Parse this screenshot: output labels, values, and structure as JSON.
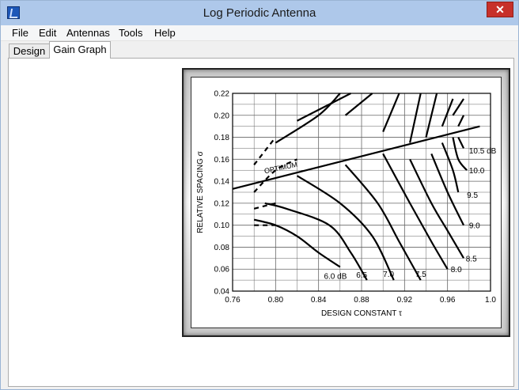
{
  "window": {
    "title": "Log Periodic Antenna",
    "close_glyph": "✕"
  },
  "menu": {
    "items": [
      "File",
      "Edit",
      "Antennas",
      "Tools",
      "Help"
    ]
  },
  "tabs": [
    {
      "label": "Design",
      "active": false
    },
    {
      "label": "Gain Graph",
      "active": true
    }
  ],
  "chart_data": {
    "type": "line",
    "xlabel": "DESIGN CONSTANT τ",
    "ylabel": "RELATIVE SPACING σ",
    "xlim": [
      0.76,
      1.0
    ],
    "ylim": [
      0.04,
      0.22
    ],
    "x_ticks": [
      "0.76",
      "0.80",
      "0.84",
      "0.88",
      "0.92",
      "0.96",
      "1.0"
    ],
    "y_ticks": [
      "0.04",
      "0.06",
      "0.08",
      "0.10",
      "0.12",
      "0.14",
      "0.16",
      "0.18",
      "0.20",
      "0.22"
    ],
    "grid": true,
    "optimum_label": "OPTIMUM",
    "optimum_line": [
      [
        0.76,
        0.133
      ],
      [
        0.99,
        0.19
      ]
    ],
    "series": [
      {
        "name": "6.0 dB",
        "points": [
          [
            0.78,
            0.105
          ],
          [
            0.8,
            0.1
          ],
          [
            0.82,
            0.09
          ],
          [
            0.84,
            0.075
          ],
          [
            0.86,
            0.062
          ]
        ]
      },
      {
        "name": "6.5",
        "points": [
          [
            0.8,
            0.175
          ],
          [
            0.84,
            0.2
          ],
          [
            0.86,
            0.22
          ]
        ]
      },
      {
        "name": "6.5",
        "points": [
          [
            0.79,
            0.12
          ],
          [
            0.81,
            0.115
          ],
          [
            0.85,
            0.1
          ],
          [
            0.87,
            0.075
          ],
          [
            0.885,
            0.05
          ]
        ]
      },
      {
        "name": "7.0",
        "points": [
          [
            0.82,
            0.195
          ],
          [
            0.87,
            0.22
          ]
        ]
      },
      {
        "name": "7.0",
        "points": [
          [
            0.82,
            0.145
          ],
          [
            0.86,
            0.12
          ],
          [
            0.89,
            0.09
          ],
          [
            0.91,
            0.05
          ]
        ]
      },
      {
        "name": "7.5",
        "points": [
          [
            0.865,
            0.2
          ],
          [
            0.89,
            0.22
          ]
        ]
      },
      {
        "name": "7.5",
        "points": [
          [
            0.865,
            0.155
          ],
          [
            0.895,
            0.12
          ],
          [
            0.915,
            0.085
          ],
          [
            0.935,
            0.05
          ]
        ]
      },
      {
        "name": "8.0",
        "points": [
          [
            0.9,
            0.185
          ],
          [
            0.915,
            0.22
          ]
        ]
      },
      {
        "name": "8.0",
        "points": [
          [
            0.9,
            0.165
          ],
          [
            0.925,
            0.12
          ],
          [
            0.945,
            0.085
          ],
          [
            0.96,
            0.06
          ]
        ]
      },
      {
        "name": "8.5",
        "points": [
          [
            0.925,
            0.175
          ],
          [
            0.935,
            0.22
          ]
        ]
      },
      {
        "name": "8.5",
        "points": [
          [
            0.925,
            0.16
          ],
          [
            0.945,
            0.12
          ],
          [
            0.96,
            0.095
          ],
          [
            0.975,
            0.07
          ]
        ]
      },
      {
        "name": "9.0",
        "points": [
          [
            0.94,
            0.18
          ],
          [
            0.95,
            0.22
          ]
        ]
      },
      {
        "name": "9.0",
        "points": [
          [
            0.945,
            0.165
          ],
          [
            0.96,
            0.13
          ],
          [
            0.975,
            0.1
          ]
        ]
      },
      {
        "name": "9.5",
        "points": [
          [
            0.955,
            0.19
          ],
          [
            0.965,
            0.215
          ]
        ]
      },
      {
        "name": "9.5",
        "points": [
          [
            0.955,
            0.175
          ],
          [
            0.965,
            0.15
          ],
          [
            0.97,
            0.13
          ]
        ]
      },
      {
        "name": "10.0",
        "points": [
          [
            0.965,
            0.2
          ],
          [
            0.975,
            0.215
          ]
        ]
      },
      {
        "name": "10.0",
        "points": [
          [
            0.965,
            0.18
          ],
          [
            0.97,
            0.16
          ],
          [
            0.978,
            0.15
          ]
        ]
      },
      {
        "name": "10.5 dB",
        "points": [
          [
            0.97,
            0.19
          ],
          [
            0.975,
            0.2
          ]
        ]
      },
      {
        "name": "10.5 dB",
        "points": [
          [
            0.97,
            0.18
          ],
          [
            0.975,
            0.17
          ]
        ]
      }
    ],
    "dashed_curves": [
      [
        [
          0.78,
          0.155
        ],
        [
          0.8,
          0.18
        ]
      ],
      [
        [
          0.78,
          0.13
        ],
        [
          0.8,
          0.15
        ],
        [
          0.82,
          0.16
        ]
      ],
      [
        [
          0.78,
          0.115
        ],
        [
          0.8,
          0.12
        ]
      ],
      [
        [
          0.78,
          0.1
        ],
        [
          0.8,
          0.1
        ]
      ]
    ],
    "curve_labels": [
      {
        "text": "6.0 dB",
        "x": 0.845,
        "y": 0.054
      },
      {
        "text": "6.5",
        "x": 0.875,
        "y": 0.055
      },
      {
        "text": "7.0",
        "x": 0.9,
        "y": 0.056
      },
      {
        "text": "7.5",
        "x": 0.93,
        "y": 0.056
      },
      {
        "text": "8.0",
        "x": 0.963,
        "y": 0.06
      },
      {
        "text": "8.5",
        "x": 0.977,
        "y": 0.07
      },
      {
        "text": "9.0",
        "x": 0.98,
        "y": 0.1
      },
      {
        "text": "9.5",
        "x": 0.978,
        "y": 0.128
      },
      {
        "text": "10.0",
        "x": 0.98,
        "y": 0.15
      },
      {
        "text": "10.5 dB",
        "x": 0.98,
        "y": 0.168
      }
    ]
  }
}
